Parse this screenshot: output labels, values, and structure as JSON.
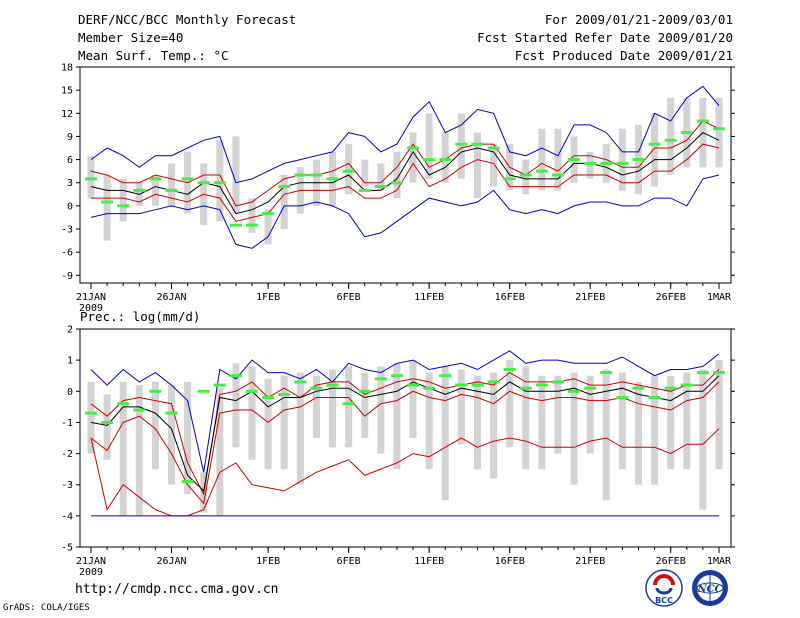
{
  "header": {
    "title": "DERF/NCC/BCC Monthly Forecast",
    "member": "Member Size=40",
    "variable": "Mean Surf. Temp.: °C",
    "period": "For 2009/01/21-2009/03/01",
    "started": "Fcst Started Refer Date 2009/01/20",
    "produced": "Fcst Produced Date 2009/01/21"
  },
  "footer": {
    "url": "http://cmdp.ncc.cma.gov.cn",
    "credit": "GrADS: COLA/IGES",
    "logo_left": "BCC",
    "logo_right": "NCC"
  },
  "colors": {
    "envelope": "#0000cc",
    "spread": "#cc0000",
    "mean": "#000000",
    "member_mean": "#44ee44",
    "bar": "#d3d3d3"
  },
  "chart_data": [
    {
      "type": "line",
      "title": "Mean Surf. Temp.: °C",
      "days": 40,
      "x_tick_days": [
        1,
        6,
        12,
        17,
        22,
        27,
        32,
        37,
        40
      ],
      "x_tick_labels": [
        "21JAN",
        "26JAN",
        "1FEB",
        "6FEB",
        "11FEB",
        "16FEB",
        "21FEB",
        "26FEB",
        "1MAR"
      ],
      "x_sublabel": "2009",
      "ylim": [
        -10,
        18
      ],
      "yticks": [
        -9,
        -6,
        -3,
        0,
        3,
        6,
        9,
        12,
        15,
        18
      ],
      "bar_low": [
        1,
        -4.5,
        -2,
        0,
        0,
        0,
        -1,
        -2.5,
        -2,
        -1,
        -3.5,
        -5,
        -3,
        -1,
        0,
        0,
        1.5,
        2.5,
        2,
        1,
        3,
        3.5,
        3,
        3.5,
        1,
        2.5,
        2,
        1.5,
        2,
        2,
        3,
        3.5,
        3,
        2,
        1.5,
        2.5,
        4,
        5,
        5,
        5
      ],
      "bar_high": [
        6.5,
        4,
        3.5,
        3,
        4,
        5.5,
        7,
        5.5,
        8.5,
        9,
        1,
        -0.5,
        4,
        5,
        6,
        7,
        8,
        6,
        5.5,
        7,
        9.5,
        12,
        9.5,
        12,
        9.5,
        8,
        8,
        6,
        10,
        10,
        9,
        7,
        8,
        10,
        10.5,
        12,
        14,
        14,
        14,
        14
      ],
      "series": [
        {
          "name": "Upper envelope",
          "color": "#0000cc",
          "values": [
            6,
            7.5,
            6.5,
            5,
            6.5,
            6.5,
            7.5,
            8.5,
            9,
            3,
            3.5,
            4.5,
            5.5,
            6,
            6.5,
            7,
            9.5,
            9,
            7,
            8,
            11.5,
            13.5,
            9.5,
            10.5,
            12.5,
            12,
            7,
            6.5,
            7.5,
            6.5,
            10.5,
            10.5,
            9.5,
            7,
            7,
            12,
            11,
            14,
            15.5,
            13
          ]
        },
        {
          "name": "Ensemble upper spread",
          "color": "#cc0000",
          "values": [
            4.5,
            4,
            3,
            3,
            4,
            3.5,
            3,
            4,
            4,
            0,
            0.5,
            2,
            3.5,
            4,
            4,
            4.5,
            5.5,
            3,
            3,
            5,
            8,
            5,
            6,
            7.5,
            8,
            8,
            5,
            4,
            5.5,
            4.5,
            6.5,
            6.5,
            6,
            5,
            5,
            7.5,
            7.5,
            8.5,
            11,
            10
          ]
        },
        {
          "name": "Ensemble mean",
          "color": "#000000",
          "values": [
            2.5,
            2,
            2,
            1.5,
            2.5,
            2,
            1.5,
            3,
            2.5,
            -1,
            -0.5,
            0.5,
            2.5,
            3,
            3,
            3,
            4,
            2,
            2,
            3.5,
            7,
            4,
            5,
            7,
            7.5,
            7,
            4,
            3.5,
            3.5,
            3.5,
            5.5,
            5.5,
            5,
            4,
            4.5,
            6,
            6,
            7.5,
            9.5,
            8.5
          ]
        },
        {
          "name": "Ensemble lower spread",
          "color": "#cc0000",
          "values": [
            1,
            1,
            1,
            0.5,
            1.5,
            1,
            0.5,
            1.5,
            1,
            -2,
            -1.5,
            -1,
            1.5,
            2,
            2,
            2,
            2.5,
            1,
            1,
            2,
            5.5,
            2.5,
            3.5,
            5,
            6,
            5.5,
            2.5,
            2.5,
            2.5,
            2.5,
            4,
            4,
            4,
            3,
            3,
            4.5,
            4.5,
            6,
            8,
            7.5
          ]
        },
        {
          "name": "Lower envelope",
          "color": "#0000cc",
          "values": [
            -1.5,
            -1,
            -1,
            -1,
            -0.5,
            0,
            -0.5,
            0,
            -0.5,
            -5,
            -5.5,
            -4,
            0,
            0,
            0.5,
            0,
            -1,
            -4,
            -3.5,
            -2,
            -0.5,
            1,
            0.5,
            0,
            0.5,
            2,
            -0.5,
            -1,
            -0.5,
            -1,
            0,
            0.5,
            0.5,
            0,
            0,
            1,
            1,
            0,
            3.5,
            4
          ]
        }
      ],
      "markers": [
        3.5,
        0.5,
        0,
        2,
        3.5,
        2,
        3.5,
        3,
        3,
        -2.5,
        -2.5,
        -1,
        2.5,
        4,
        4,
        3.5,
        4.5,
        2,
        2.5,
        3,
        7.5,
        6,
        6,
        8,
        8,
        7.5,
        3.5,
        4,
        4.5,
        4,
        6,
        5.5,
        5.5,
        5.5,
        6,
        8,
        8.5,
        9.5,
        11,
        10
      ]
    },
    {
      "type": "line",
      "title": "Prec.: log(mm/d)",
      "days": 40,
      "x_tick_days": [
        1,
        6,
        12,
        17,
        22,
        27,
        32,
        37,
        40
      ],
      "x_tick_labels": [
        "21JAN",
        "26JAN",
        "1FEB",
        "6FEB",
        "11FEB",
        "16FEB",
        "21FEB",
        "26FEB",
        "1MAR"
      ],
      "x_sublabel": "2009",
      "ylim": [
        -5,
        2
      ],
      "yticks": [
        -5,
        -4,
        -3,
        -2,
        -1,
        0,
        1,
        2
      ],
      "bar_low": [
        -2,
        -2.2,
        -4,
        -4,
        -2.5,
        -3,
        -3.3,
        -3.9,
        -4,
        -1.8,
        -2.2,
        -2.5,
        -2.5,
        -3,
        -1.5,
        -1.8,
        -1.8,
        -1.5,
        -2,
        -2.5,
        -1.5,
        -2.5,
        -3.5,
        -1.7,
        -2.5,
        -2.8,
        -1.8,
        -2.5,
        -2.5,
        -2,
        -3,
        -2,
        -3.5,
        -2.5,
        -3,
        -3,
        -2.5,
        -2.5,
        -3.8,
        -2.5
      ],
      "bar_high": [
        0.3,
        -0.1,
        0.3,
        0.2,
        0.3,
        0.2,
        0.3,
        -2.6,
        0.1,
        0.9,
        0.8,
        0.4,
        0.5,
        0.6,
        0.5,
        0.7,
        0.8,
        0.6,
        0.8,
        0.9,
        1,
        0.6,
        0.8,
        0.7,
        0.5,
        0.6,
        1,
        0.8,
        0.5,
        0.5,
        0.6,
        0.5,
        0.7,
        0.6,
        0.3,
        0.5,
        0.5,
        0.6,
        0.7,
        1
      ],
      "series": [
        {
          "name": "Upper envelope",
          "color": "#0000cc",
          "values": [
            0.7,
            0.2,
            0.7,
            0.3,
            0.6,
            0.2,
            -0.3,
            -2.6,
            0.7,
            0.4,
            1,
            0.6,
            0.6,
            0.4,
            0.7,
            0.3,
            0.9,
            0.7,
            0.6,
            0.9,
            1,
            0.7,
            0.8,
            0.9,
            0.7,
            1,
            1.3,
            0.9,
            1,
            1,
            0.9,
            0.9,
            0.9,
            1.1,
            0.8,
            0.5,
            0.7,
            0.7,
            0.8,
            1.2
          ]
        },
        {
          "name": "Ensemble upper spread",
          "color": "#cc0000",
          "values": [
            -0.4,
            -0.8,
            -0.3,
            -0.2,
            -0.3,
            -0.4,
            -2.3,
            -3.3,
            -0.1,
            0,
            0.3,
            -0.2,
            0.1,
            -0.2,
            0.2,
            0.3,
            0.3,
            -0.1,
            0.1,
            0.3,
            0.4,
            0.3,
            0.1,
            0.2,
            0.3,
            0.2,
            0.6,
            0.3,
            0.3,
            0.3,
            0.4,
            0.2,
            0.2,
            0.3,
            0.2,
            0.1,
            0,
            0.2,
            0.2,
            0.7
          ]
        },
        {
          "name": "Ensemble mean",
          "color": "#000000",
          "values": [
            -1,
            -1.1,
            -0.5,
            -0.5,
            -0.7,
            -1.2,
            -2.7,
            -3.2,
            -0.2,
            -0.3,
            0,
            -0.5,
            -0.2,
            -0.2,
            0,
            0.1,
            0.1,
            -0.2,
            -0.1,
            0,
            0.3,
            0.1,
            -0.1,
            0.1,
            0,
            -0.1,
            0.3,
            0,
            0,
            0,
            0.1,
            -0.1,
            0,
            0.1,
            -0.1,
            -0.2,
            -0.3,
            0,
            0,
            0.5
          ]
        },
        {
          "name": "Ensemble lower spread",
          "color": "#cc0000",
          "values": [
            -1.5,
            -1.9,
            -1,
            -0.8,
            -1.2,
            -2,
            -3,
            -3.6,
            -0.7,
            -0.6,
            -0.6,
            -1,
            -0.6,
            -0.5,
            -0.2,
            -0.2,
            -0.2,
            -0.8,
            -0.4,
            -0.3,
            0,
            -0.2,
            -0.3,
            -0.1,
            -0.2,
            -0.4,
            0,
            -0.2,
            -0.3,
            -0.2,
            -0.2,
            -0.3,
            -0.3,
            -0.2,
            -0.4,
            -0.5,
            -0.6,
            -0.3,
            -0.2,
            0.3
          ]
        },
        {
          "name": "Lower envelope",
          "color": "#cc0000",
          "values": [
            -1.5,
            -3.8,
            -3,
            -3.4,
            -3.8,
            -4,
            -4,
            -3.8,
            -2.6,
            -2.3,
            -3,
            -3.1,
            -3.2,
            -2.9,
            -2.6,
            -2.4,
            -2.2,
            -2.7,
            -2.5,
            -2.3,
            -2,
            -2.1,
            -1.8,
            -1.5,
            -1.8,
            -1.6,
            -1.5,
            -1.6,
            -1.8,
            -1.8,
            -1.8,
            -1.6,
            -1.5,
            -1.8,
            -1.8,
            -1.8,
            -2,
            -1.7,
            -1.7,
            -1.2
          ]
        },
        {
          "name": "Floor",
          "color": "#0000cc",
          "values": [
            -4,
            -4,
            -4,
            -4,
            -4,
            -4,
            -4,
            -4,
            -4,
            -4,
            -4,
            -4,
            -4,
            -4,
            -4,
            -4,
            -4,
            -4,
            -4,
            -4,
            -4,
            -4,
            -4,
            -4,
            -4,
            -4,
            -4,
            -4,
            -4,
            -4,
            -4,
            -4,
            -4,
            -4,
            -4,
            -4,
            -4,
            -4,
            -4,
            -4
          ]
        }
      ],
      "markers": [
        -0.7,
        -1,
        -0.4,
        -0.6,
        0,
        -0.7,
        -2.9,
        0,
        0.2,
        0.5,
        0,
        -0.2,
        -0.1,
        0.3,
        0.1,
        0.2,
        -0.4,
        0,
        0.4,
        0.5,
        0.2,
        0.1,
        0.5,
        0.2,
        0.2,
        0.3,
        0.7,
        0.1,
        0.2,
        0.3,
        0,
        0.1,
        0.6,
        -0.2,
        0.1,
        -0.2,
        0.1,
        0.2,
        0.6,
        0.6
      ]
    }
  ]
}
